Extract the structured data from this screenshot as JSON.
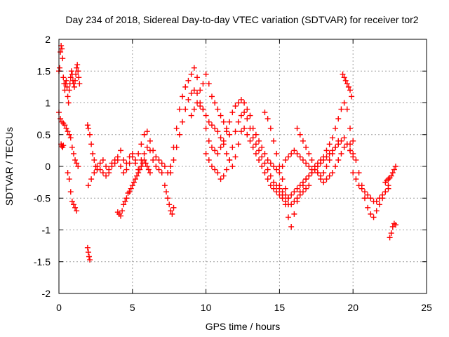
{
  "chart_data": {
    "type": "scatter",
    "title": "Day 234 of 2018, Sidereal Day-to-day VTEC variation (SDTVAR) for receiver tor2",
    "xlabel": "GPS time / hours",
    "ylabel": "SDTVAR / TECUs",
    "xlim": [
      0,
      25
    ],
    "ylim": [
      -2,
      2
    ],
    "x_ticks": [
      0,
      5,
      10,
      15,
      20,
      25
    ],
    "x_tick_labels": [
      "0",
      "5",
      "10",
      "15",
      "20",
      "25"
    ],
    "y_ticks": [
      -2,
      -1.5,
      -1,
      -0.5,
      0,
      0.5,
      1,
      1.5,
      2
    ],
    "y_tick_labels": [
      "-2",
      "-1.5",
      "-1",
      "-0.5",
      "0",
      "0.5",
      "1",
      "1.5",
      "2"
    ],
    "grid": true,
    "marker": "plus",
    "series_color": "#ff0000",
    "series": [
      {
        "name": "SDTVAR",
        "x": [
          0.0,
          0.05,
          0.1,
          0.15,
          0.2,
          0.25,
          0.3,
          0.35,
          0.4,
          0.45,
          0.5,
          0.55,
          0.6,
          0.65,
          0.7,
          0.75,
          0.8,
          0.85,
          0.9,
          0.95,
          1.0,
          1.05,
          1.1,
          1.15,
          1.2,
          1.25,
          1.3,
          1.35,
          1.4,
          0.0,
          0.1,
          0.2,
          0.3,
          0.4,
          0.5,
          0.6,
          0.7,
          0.8,
          0.9,
          1.0,
          1.1,
          1.2,
          1.3,
          0.6,
          0.7,
          0.8,
          0.9,
          1.0,
          1.1,
          1.2,
          0.15,
          0.2,
          0.25,
          0.3,
          1.95,
          2.0,
          2.05,
          2.1,
          1.95,
          2.0,
          2.1,
          2.2,
          2.3,
          2.4,
          2.5,
          2.6,
          2.8,
          3.0,
          3.2,
          3.4,
          3.6,
          3.8,
          4.0,
          4.2,
          4.4,
          4.6,
          4.8,
          5.0,
          5.2,
          5.4,
          5.6,
          5.8,
          6.0,
          6.2,
          6.4,
          6.6,
          6.8,
          7.0,
          7.2,
          7.4,
          2.0,
          2.2,
          2.4,
          2.6,
          2.8,
          3.0,
          3.2,
          3.4,
          3.6,
          3.8,
          4.0,
          4.2,
          4.4,
          4.6,
          4.8,
          5.0,
          5.2,
          5.4,
          5.6,
          5.8,
          6.0,
          6.2,
          6.4,
          6.6,
          6.8,
          7.0,
          4.0,
          4.1,
          4.2,
          4.3,
          4.4,
          4.5,
          4.6,
          4.7,
          4.8,
          4.9,
          5.0,
          5.1,
          5.2,
          5.3,
          5.4,
          5.5,
          5.6,
          5.7,
          5.8,
          5.9,
          6.0,
          6.1,
          6.2,
          7.2,
          7.3,
          7.4,
          7.5,
          7.6,
          7.7,
          7.8,
          7.6,
          7.8,
          8.0,
          8.2,
          8.4,
          8.6,
          8.8,
          9.0,
          9.2,
          9.4,
          9.6,
          9.8,
          10.0,
          10.2,
          10.4,
          10.6,
          10.8,
          11.0,
          11.2,
          11.4,
          11.6,
          7.6,
          7.8,
          8.0,
          8.2,
          8.4,
          8.6,
          8.8,
          9.0,
          9.2,
          9.4,
          9.6,
          9.8,
          10.0,
          10.2,
          10.4,
          10.6,
          10.8,
          9.0,
          9.2,
          9.4,
          9.6,
          9.8,
          10.0,
          10.2,
          10.4,
          10.6,
          10.8,
          11.0,
          11.2,
          11.4,
          11.6,
          11.8,
          12.0,
          12.2,
          12.4,
          12.6,
          12.8,
          13.0,
          13.2,
          13.4,
          13.6,
          13.8,
          14.0,
          14.2,
          14.4,
          14.6,
          14.8,
          15.0,
          15.2,
          15.4,
          15.6,
          15.8,
          16.0,
          16.2,
          16.4,
          16.6,
          16.8,
          17.0,
          17.2,
          17.4,
          17.6,
          17.8,
          18.0,
          18.2,
          18.4,
          18.6,
          18.8,
          19.0,
          19.2,
          19.4,
          19.6,
          19.8,
          20.0,
          10.0,
          10.2,
          10.4,
          10.6,
          10.8,
          11.0,
          11.2,
          11.4,
          11.6,
          11.8,
          12.0,
          12.2,
          12.4,
          12.6,
          12.8,
          13.0,
          13.2,
          13.4,
          13.6,
          13.8,
          14.0,
          14.2,
          14.4,
          14.6,
          14.8,
          15.0,
          15.2,
          15.4,
          15.6,
          15.8,
          16.0,
          16.2,
          16.4,
          16.6,
          16.8,
          17.0,
          17.2,
          17.4,
          17.6,
          17.8,
          18.0,
          18.2,
          18.4,
          18.6,
          18.8,
          19.0,
          19.2,
          19.4,
          19.6,
          19.8,
          11.0,
          11.2,
          11.4,
          11.6,
          11.8,
          12.0,
          12.2,
          12.4,
          12.6,
          12.8,
          13.0,
          13.2,
          13.4,
          13.6,
          13.8,
          14.0,
          14.2,
          14.4,
          14.6,
          14.8,
          15.0,
          15.2,
          15.4,
          15.6,
          15.8,
          16.0,
          16.2,
          16.4,
          16.6,
          16.8,
          17.0,
          14.0,
          14.2,
          14.4,
          14.6,
          14.8,
          15.0,
          15.2,
          15.4,
          15.6,
          15.0,
          15.2,
          15.4,
          15.6,
          15.8,
          16.0,
          16.2,
          16.4,
          16.6,
          16.8,
          17.0,
          17.2,
          17.4,
          17.6,
          17.8,
          18.0,
          18.2,
          18.4,
          18.6,
          18.8,
          19.0,
          16.2,
          16.4,
          16.6,
          16.8,
          17.0,
          17.2,
          17.4,
          17.6,
          17.8,
          18.0,
          18.2,
          18.4,
          18.6,
          18.8,
          19.0,
          19.2,
          19.4,
          19.6,
          19.8,
          20.0,
          19.3,
          19.4,
          19.5,
          19.6,
          19.7,
          19.8,
          19.9,
          19.8,
          20.0,
          20.2,
          20.4,
          20.6,
          20.8,
          21.0,
          21.2,
          21.4,
          21.6,
          21.8,
          22.0,
          22.2,
          22.4,
          20.0,
          20.2,
          20.4,
          20.6,
          20.8,
          21.0,
          21.2,
          21.4,
          21.6,
          21.8,
          22.0,
          22.2,
          22.4,
          22.2,
          22.3,
          22.4,
          22.5,
          22.6,
          22.7,
          22.8,
          22.9,
          22.5,
          22.6,
          22.7,
          22.8,
          22.9
        ],
        "y": [
          1.5,
          1.55,
          1.8,
          1.9,
          1.85,
          1.7,
          1.4,
          1.3,
          1.2,
          1.3,
          1.35,
          1.25,
          1.1,
          1.0,
          1.2,
          1.3,
          1.4,
          1.5,
          1.45,
          1.35,
          1.3,
          1.25,
          1.35,
          1.45,
          1.55,
          1.6,
          1.5,
          1.4,
          1.3,
          0.85,
          0.75,
          0.7,
          0.68,
          0.65,
          0.6,
          0.55,
          0.5,
          0.45,
          0.3,
          0.2,
          0.1,
          0.05,
          0.0,
          -0.1,
          -0.2,
          -0.4,
          -0.55,
          -0.6,
          -0.65,
          -0.7,
          0.35,
          0.32,
          0.3,
          0.33,
          -1.28,
          -1.35,
          -1.42,
          -1.47,
          0.65,
          0.6,
          0.5,
          0.35,
          0.2,
          0.1,
          0.0,
          -0.05,
          0.05,
          0.1,
          0.0,
          -0.05,
          0.05,
          0.1,
          0.15,
          0.25,
          0.1,
          0.05,
          0.15,
          0.2,
          0.1,
          0.2,
          0.35,
          0.5,
          0.55,
          0.4,
          0.25,
          0.15,
          0.1,
          0.05,
          0.0,
          -0.1,
          -0.3,
          -0.2,
          -0.1,
          0.0,
          -0.05,
          -0.1,
          -0.15,
          -0.1,
          0.0,
          0.05,
          0.1,
          0.0,
          -0.1,
          -0.05,
          0.05,
          0.15,
          0.05,
          -0.05,
          0.1,
          0.2,
          0.3,
          0.25,
          0.1,
          0.0,
          -0.05,
          -0.1,
          -0.72,
          -0.75,
          -0.78,
          -0.7,
          -0.6,
          -0.55,
          -0.5,
          -0.42,
          -0.4,
          -0.35,
          -0.3,
          -0.25,
          -0.2,
          -0.15,
          -0.1,
          -0.05,
          0.0,
          0.05,
          0.1,
          0.05,
          0.0,
          -0.05,
          -0.1,
          -0.3,
          -0.4,
          -0.5,
          -0.6,
          -0.7,
          -0.75,
          -0.65,
          0.0,
          0.3,
          0.6,
          0.9,
          1.1,
          1.25,
          1.35,
          1.45,
          1.55,
          1.4,
          1.2,
          1.3,
          1.45,
          1.3,
          1.1,
          1.0,
          0.9,
          0.8,
          0.7,
          0.6,
          0.5,
          -0.1,
          0.1,
          0.3,
          0.5,
          0.7,
          0.9,
          1.05,
          1.15,
          1.2,
          1.15,
          1.0,
          0.9,
          0.8,
          0.7,
          0.65,
          0.6,
          0.55,
          0.8,
          0.9,
          1.0,
          0.95,
          0.9,
          0.6,
          0.4,
          0.3,
          0.25,
          0.2,
          0.3,
          0.4,
          0.55,
          0.7,
          0.85,
          0.95,
          1.0,
          1.05,
          1.0,
          0.9,
          0.8,
          0.6,
          0.5,
          0.4,
          0.3,
          0.2,
          0.1,
          0.05,
          0.0,
          -0.05,
          -0.1,
          0.0,
          0.1,
          0.15,
          0.2,
          0.25,
          0.2,
          0.15,
          0.1,
          0.05,
          0.0,
          -0.05,
          0.0,
          0.05,
          0.1,
          0.15,
          0.25,
          0.35,
          0.45,
          0.6,
          0.75,
          0.9,
          1.0,
          0.9,
          0.6,
          0.4,
          0.2,
          0.1,
          0.0,
          -0.05,
          -0.1,
          -0.2,
          -0.15,
          -0.05,
          0.1,
          0.3,
          0.55,
          0.7,
          0.8,
          0.85,
          0.75,
          0.6,
          0.45,
          0.35,
          0.25,
          0.15,
          0.05,
          -0.05,
          -0.15,
          -0.25,
          -0.3,
          -0.35,
          -0.4,
          -0.45,
          -0.5,
          -0.45,
          -0.4,
          -0.35,
          -0.3,
          -0.25,
          -0.2,
          -0.15,
          -0.1,
          -0.05,
          0.0,
          0.05,
          0.1,
          0.15,
          0.2,
          0.25,
          0.3,
          0.35,
          0.4,
          0.45,
          0.35,
          0.25,
          0.45,
          0.35,
          0.2,
          0.1,
          0.0,
          0.15,
          0.35,
          0.55,
          0.6,
          0.5,
          0.4,
          0.3,
          0.2,
          0.1,
          0.0,
          -0.1,
          -0.2,
          -0.3,
          -0.35,
          -0.4,
          -0.45,
          -0.5,
          -0.55,
          -0.6,
          -0.6,
          -0.55,
          -0.5,
          -0.45,
          -0.4,
          -0.35,
          -0.3,
          0.85,
          0.75,
          0.6,
          0.4,
          0.2,
          0.0,
          -0.2,
          -0.35,
          -0.5,
          -0.3,
          -0.45,
          -0.6,
          -0.8,
          -0.95,
          -0.75,
          -0.55,
          -0.4,
          -0.3,
          -0.2,
          -0.15,
          -0.1,
          -0.05,
          -0.1,
          -0.15,
          -0.1,
          0.0,
          0.1,
          0.2,
          0.3,
          0.4,
          0.6,
          0.5,
          0.4,
          0.3,
          0.2,
          0.1,
          0.0,
          -0.1,
          -0.2,
          -0.25,
          -0.2,
          -0.15,
          -0.1,
          0.0,
          0.1,
          0.2,
          0.3,
          0.35,
          0.25,
          0.15,
          1.45,
          1.4,
          1.35,
          1.3,
          1.25,
          1.2,
          1.1,
          0.35,
          0.2,
          0.1,
          -0.1,
          -0.3,
          -0.5,
          -0.65,
          -0.75,
          -0.8,
          -0.7,
          -0.6,
          -0.5,
          -0.4,
          -0.3,
          -0.1,
          -0.2,
          -0.3,
          -0.35,
          -0.4,
          -0.45,
          -0.5,
          -0.55,
          -0.55,
          -0.5,
          -0.45,
          -0.4,
          -0.35,
          -0.25,
          -0.22,
          -0.2,
          -0.18,
          -0.15,
          -0.1,
          -0.05,
          0.0,
          -1.12,
          -1.05,
          -0.95,
          -0.9,
          -0.92
        ]
      }
    ]
  }
}
